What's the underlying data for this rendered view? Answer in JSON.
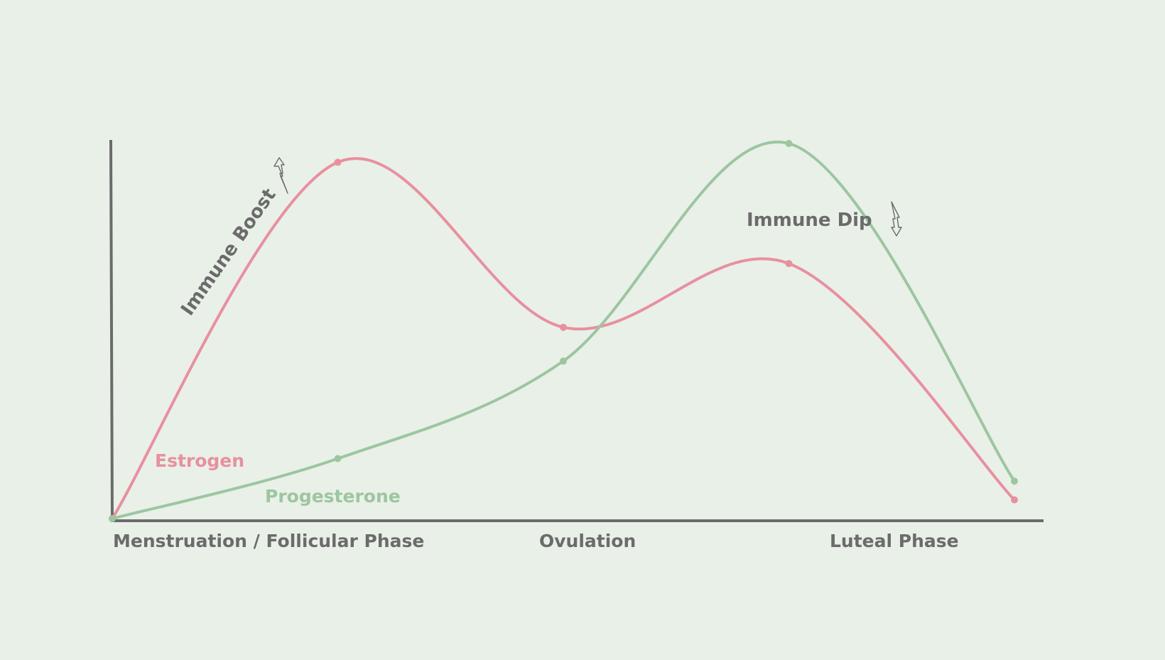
{
  "colors": {
    "background": "#e9f0e8",
    "axis": "#6b6b6b",
    "estrogen": "#e8909f",
    "progesterone": "#9cc6a0",
    "annotation_text": "#6b6b6b"
  },
  "chart_data": {
    "type": "line",
    "title": "",
    "xlabel": "",
    "ylabel": "",
    "categories": [
      "Menstruation / Follicular Phase",
      "Ovulation",
      "Luteal Phase"
    ],
    "x": [
      0,
      1,
      2,
      3,
      4
    ],
    "ylim": [
      0,
      100
    ],
    "grid": false,
    "series": [
      {
        "name": "Estrogen",
        "color": "#e8909f",
        "values": [
          0,
          95,
          51,
          68,
          5
        ]
      },
      {
        "name": "Progesterone",
        "color": "#9cc6a0",
        "values": [
          0,
          16,
          42,
          100,
          10
        ]
      }
    ],
    "annotations": [
      {
        "text": "Immune Boost",
        "direction": "up"
      },
      {
        "text": "Immune Dip",
        "direction": "down"
      }
    ]
  }
}
